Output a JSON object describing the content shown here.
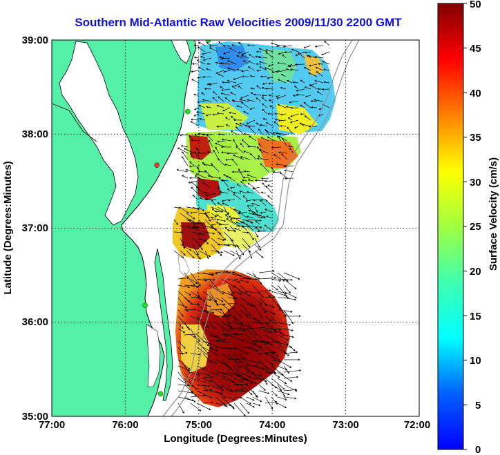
{
  "title": "Southern Mid-Atlantic Raw Velocities 2009/11/30 2200 GMT",
  "x_axis": {
    "label": "Longitude (Degrees:Minutes)",
    "ticks": [
      "77:00",
      "76:00",
      "75:00",
      "74:00",
      "73:00",
      "72:00"
    ]
  },
  "y_axis": {
    "label": "Latitude (Degrees:Minutes)",
    "ticks": [
      "39:00",
      "38:00",
      "37:00",
      "36:00",
      "35:00"
    ]
  },
  "colorbar": {
    "label": "Surface Velocity (cm/s)",
    "ticks": [
      "50",
      "45",
      "40",
      "35",
      "30",
      "25",
      "20",
      "15",
      "10",
      "5",
      "0"
    ],
    "range": [
      0,
      50
    ],
    "colormap": "jet"
  },
  "colors": {
    "land": "#55f0a8",
    "ocean": "#ffffff",
    "coastline": "#000000",
    "bathymetry": "#909090",
    "title": "#1010e0",
    "station": "#22dd22",
    "station_inactive": "#ee3333"
  },
  "map": {
    "lon_range": [
      -77,
      -72
    ],
    "lat_range": [
      35,
      39
    ],
    "grid": "dotted",
    "stations": [
      {
        "lon": -74.87,
        "lat": 39.0,
        "status": "active"
      },
      {
        "lon": -75.15,
        "lat": 38.24,
        "status": "active"
      },
      {
        "lon": -75.57,
        "lat": 37.67,
        "status": "inactive"
      },
      {
        "lon": -75.73,
        "lat": 36.18,
        "status": "active"
      },
      {
        "lon": -75.52,
        "lat": 35.24,
        "status": "active"
      }
    ]
  }
}
